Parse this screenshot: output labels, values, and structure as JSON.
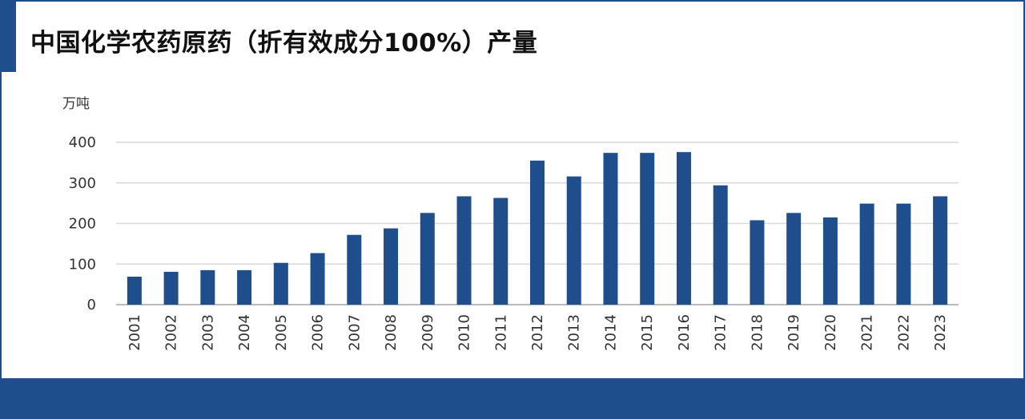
{
  "chart_data": {
    "type": "bar",
    "title": "中国化学农药原药（折有效成分100%）产量",
    "ylabel": "万吨",
    "xlabel": "",
    "ylim": [
      0,
      400
    ],
    "yticks": [
      "0",
      "100",
      "200",
      "300",
      "400"
    ],
    "grid": true,
    "bar_color": "#1f4e8c",
    "categories": [
      "2001",
      "2002",
      "2003",
      "2004",
      "2005",
      "2006",
      "2007",
      "2008",
      "2009",
      "2010",
      "2011",
      "2012",
      "2013",
      "2014",
      "2015",
      "2016",
      "2017",
      "2018",
      "2019",
      "2020",
      "2021",
      "2022",
      "2023"
    ],
    "values": [
      69,
      81,
      85,
      85,
      103,
      127,
      172,
      188,
      226,
      267,
      263,
      355,
      316,
      374,
      374,
      376,
      294,
      208,
      226,
      215,
      249,
      249,
      267
    ]
  }
}
